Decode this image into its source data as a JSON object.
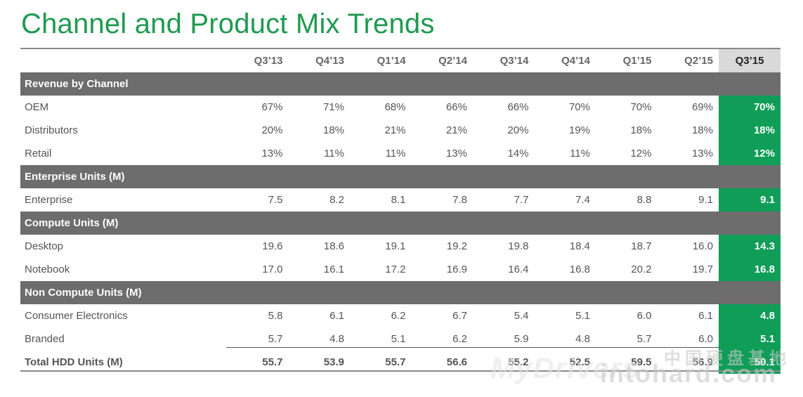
{
  "title": "Channel and Product Mix Trends",
  "columns": [
    "Q3’13",
    "Q4’13",
    "Q1’14",
    "Q2’14",
    "Q3’14",
    "Q4’14",
    "Q1’15",
    "Q2’15",
    "Q3’15"
  ],
  "sections": [
    {
      "title": "Revenue by Channel",
      "rows": [
        {
          "label": "OEM",
          "values": [
            "67%",
            "71%",
            "68%",
            "66%",
            "66%",
            "70%",
            "70%",
            "69%",
            "70%"
          ]
        },
        {
          "label": "Distributors",
          "values": [
            "20%",
            "18%",
            "21%",
            "21%",
            "20%",
            "19%",
            "18%",
            "18%",
            "18%"
          ]
        },
        {
          "label": "Retail",
          "values": [
            "13%",
            "11%",
            "11%",
            "13%",
            "14%",
            "11%",
            "12%",
            "13%",
            "12%"
          ]
        }
      ]
    },
    {
      "title": "Enterprise Units (M)",
      "rows": [
        {
          "label": "Enterprise",
          "values": [
            "7.5",
            "8.2",
            "8.1",
            "7.8",
            "7.7",
            "7.4",
            "8.8",
            "9.1",
            "9.1"
          ]
        }
      ]
    },
    {
      "title": "Compute Units (M)",
      "rows": [
        {
          "label": "Desktop",
          "values": [
            "19.6",
            "18.6",
            "19.1",
            "19.2",
            "19.8",
            "18.4",
            "18.7",
            "16.0",
            "14.3"
          ]
        },
        {
          "label": "Notebook",
          "values": [
            "17.0",
            "16.1",
            "17.2",
            "16.9",
            "16.4",
            "16.8",
            "20.2",
            "19.7",
            "16.8"
          ]
        }
      ]
    },
    {
      "title": "Non Compute Units (M)",
      "rows": [
        {
          "label": "Consumer Electronics",
          "values": [
            "5.8",
            "6.1",
            "6.2",
            "6.7",
            "5.4",
            "5.1",
            "6.0",
            "6.1",
            "4.8"
          ]
        },
        {
          "label": "Branded",
          "values": [
            "5.7",
            "4.8",
            "5.1",
            "6.2",
            "5.9",
            "4.8",
            "5.7",
            "6.0",
            "5.1"
          ]
        }
      ]
    }
  ],
  "total": {
    "label": "Total HDD Units (M)",
    "values": [
      "55.7",
      "53.9",
      "55.7",
      "56.6",
      "55.2",
      "52.5",
      "59.5",
      "56.9",
      "50.1"
    ]
  },
  "watermark": {
    "line1": "MyDrivers",
    "line2": "intohard.com",
    "line3": "中国硬盘基地"
  },
  "colors": {
    "title_green": "#1f9a50",
    "highlight_green": "#0f9d58",
    "section_gray": "#6d6d6d",
    "header_highlight": "#d9d9d9"
  }
}
